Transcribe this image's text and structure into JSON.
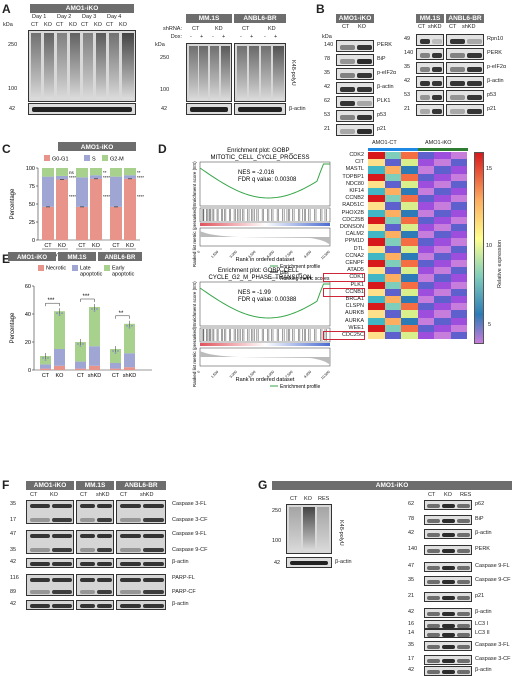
{
  "panelA": {
    "letter": "A",
    "cell_title_left": "AMO1-iKO",
    "days": [
      "Day 1",
      "Day 2",
      "Day 3",
      "Day 4"
    ],
    "lane_labels_left": [
      "CT",
      "KO",
      "CT",
      "KO",
      "CT",
      "KO",
      "CT",
      "KO"
    ],
    "kda_label": "kDa",
    "mw_main": [
      "250",
      "100"
    ],
    "mw_actin": "42",
    "blot_label": "K48-polyU",
    "actin_label": "β-actin",
    "cell_title_mid": "MM.1S",
    "cell_title_right": "ANBL6-BR",
    "shrna_label": "shRNA:",
    "dox_label": "Dox:",
    "shrna_groups": [
      "CT",
      "KD",
      "CT",
      "KD"
    ],
    "dox_signs": [
      "-",
      "+",
      "-",
      "+",
      "-",
      "+",
      "-",
      "+"
    ]
  },
  "panelB": {
    "letter": "B",
    "left_title": "AMO1-iKO",
    "left_lanes": [
      "CT",
      "KO"
    ],
    "left_mw": [
      "140",
      "78",
      "35",
      "42",
      "62",
      "53",
      "21"
    ],
    "left_proteins": [
      "PERK",
      "BiP",
      "p-eIF2α",
      "β-actin",
      "PLK1",
      "p53",
      "p21"
    ],
    "right_title_1": "MM.1S",
    "right_title_2": "ANBL6-BR",
    "right_lanes": [
      "CT",
      "shKD",
      "CT",
      "shKD"
    ],
    "right_mw": [
      "49",
      "140",
      "35",
      "42",
      "53",
      "21"
    ],
    "right_proteins": [
      "Rpn10",
      "PERK",
      "p-eIF2α",
      "β-actin",
      "p53",
      "p21"
    ]
  },
  "panelC": {
    "letter": "C",
    "title": "AMO1-iKO",
    "legend": [
      "G0-G1",
      "S",
      "G2-M"
    ],
    "ylabel": "Percentage",
    "yticks": [
      "0",
      "25",
      "50",
      "75",
      "100"
    ],
    "groups": [
      "Day 2",
      "Day 4",
      "Day 6"
    ],
    "bar_labels": [
      "CT",
      "KO",
      "CT",
      "KO",
      "CT",
      "KO"
    ],
    "sig_g2m": [
      "ns",
      "**",
      "**"
    ],
    "sig_s": [
      "****",
      "****",
      "****"
    ],
    "sig_g1": [
      "****",
      "****",
      "****"
    ],
    "colors": {
      "g1": "#e8948a",
      "s": "#9fa6d4",
      "g2m": "#a9d18e"
    }
  },
  "chart_data": [
    {
      "type": "bar",
      "title": "AMO1-iKO",
      "ylabel": "Percentage",
      "ylim": [
        0,
        100
      ],
      "categories": [
        "Day 2 CT",
        "Day 2 KO",
        "Day 4 CT",
        "Day 4 KO",
        "Day 6 CT",
        "Day 6 KO"
      ],
      "series": [
        {
          "name": "G0-G1",
          "values": [
            46,
            84,
            46,
            85,
            46,
            85
          ]
        },
        {
          "name": "S",
          "values": [
            42,
            5,
            41,
            5,
            42,
            5
          ]
        },
        {
          "name": "G2-M",
          "values": [
            12,
            11,
            13,
            10,
            12,
            10
          ]
        }
      ]
    },
    {
      "type": "bar",
      "ylabel": "Percentage",
      "ylim": [
        0,
        60
      ],
      "categories": [
        "AMO1-iKO CT",
        "AMO1-iKO KO",
        "MM.1S CT",
        "MM.1S shKD",
        "ANBL6-BR CT",
        "ANBL6-BR shKD"
      ],
      "series": [
        {
          "name": "Necrotic",
          "values": [
            1,
            3,
            1,
            3,
            1,
            2
          ]
        },
        {
          "name": "Late apoptotic",
          "values": [
            3,
            12,
            5,
            14,
            4,
            10
          ]
        },
        {
          "name": "Early apoptotic",
          "values": [
            6,
            27,
            14,
            28,
            10,
            21
          ]
        }
      ]
    }
  ],
  "panelD": {
    "letter": "D",
    "gsea1_title": "Enrichment plot: GOBP_\nMITOTIC_CELL_CYCLE_PROCESS",
    "gsea1_nes": "NES = -2.016",
    "gsea1_fdr": "FDR q value: 0.00308",
    "gsea2_title": "Enrichment plot: GOBP_CELL_\nCYCLE_G2_M_PHASE_TRANSITION",
    "gsea2_nes": "NES = -1.99",
    "gsea2_fdr": "FDR q value: 0.00388",
    "es_label": "Enrichment score (ES)",
    "rank_metric_label": "Ranked list metric (preranked)",
    "rank_label": "Rank in ordered dataset",
    "legend": [
      "Enrichment profile",
      "Hits",
      "Ranking metric scores"
    ],
    "xticks": [
      "0",
      "1,500",
      "3,000",
      "4,500",
      "6,000",
      "7,500",
      "9,000",
      "10,500"
    ],
    "heatmap_cols": [
      "AMO1-CT",
      "AMO1-iKO"
    ],
    "genes": [
      "CDK2",
      "CIT",
      "MASTL",
      "TOPBP1",
      "NDC80",
      "KIF14",
      "CCNB2",
      "RAD51C",
      "PHOX2B",
      "CDC25B",
      "DONSON",
      "CALM2",
      "PPM1D",
      "DTL",
      "CCNA2",
      "CENPF",
      "ATAD5",
      "CDK1",
      "PLK1",
      "CCNB1",
      "BRCA1",
      "CLSPN",
      "AURKB",
      "AURKA",
      "WEE1",
      "CDC25C"
    ],
    "boxed_genes": [
      "CDK1",
      "CCNB1",
      "CDC25C"
    ],
    "colorbar_ticks": [
      "15",
      "10",
      "5"
    ],
    "colorbar_label": "Relative expression"
  },
  "panelE": {
    "letter": "E",
    "titles": [
      "AMO1-iKO",
      "MM.1S",
      "ANBL6-BR"
    ],
    "legend": [
      "Necrotic",
      "Late apoptotic",
      "Early apoptotic"
    ],
    "ylabel": "Percentage",
    "yticks": [
      "0",
      "20",
      "40",
      "60"
    ],
    "bar_labels": [
      "CT",
      "KO",
      "CT",
      "shKD",
      "CT",
      "shKD"
    ],
    "sig": [
      "***",
      "***",
      "**"
    ],
    "colors": {
      "necrotic": "#e8948a",
      "late": "#9fa6d4",
      "early": "#a9d18e"
    }
  },
  "panelF": {
    "letter": "F",
    "titles": [
      "AMO1-iKO",
      "MM.1S",
      "ANBL6-BR"
    ],
    "lanes": [
      "CT",
      "KO",
      "CT",
      "shKD",
      "CT",
      "shKD"
    ],
    "mw": [
      "35",
      "17",
      "47",
      "35",
      "42",
      "116",
      "89",
      "42"
    ],
    "proteins": [
      "Caspase 3-FL",
      "Caspase 3-CF",
      "Caspase 9-FL",
      "Caspase 9-CF",
      "β-actin",
      "PARP-FL",
      "PARP-CF",
      "β-actin"
    ]
  },
  "panelG": {
    "letter": "G",
    "title": "AMO1-iKO",
    "left_lanes": [
      "CT",
      "KO",
      "RES"
    ],
    "left_mw": [
      "250",
      "100",
      "42"
    ],
    "left_label": "K48-polyU",
    "left_actin": "β-actin",
    "right_lanes": [
      "CT",
      "KO",
      "RES"
    ],
    "right_mw": [
      "62",
      "78",
      "42",
      "140",
      "47",
      "35",
      "21",
      "42",
      "16",
      "14",
      "35",
      "17",
      "42"
    ],
    "right_proteins": [
      "p62",
      "BiP",
      "β-actin",
      "PERK",
      "Caspase 9-FL",
      "Caspase 9-CF",
      "p21",
      "β-actin",
      "LC3 I",
      "LC3 II",
      "Caspase 3-FL",
      "Caspase 3-CF",
      "β-actin"
    ]
  }
}
